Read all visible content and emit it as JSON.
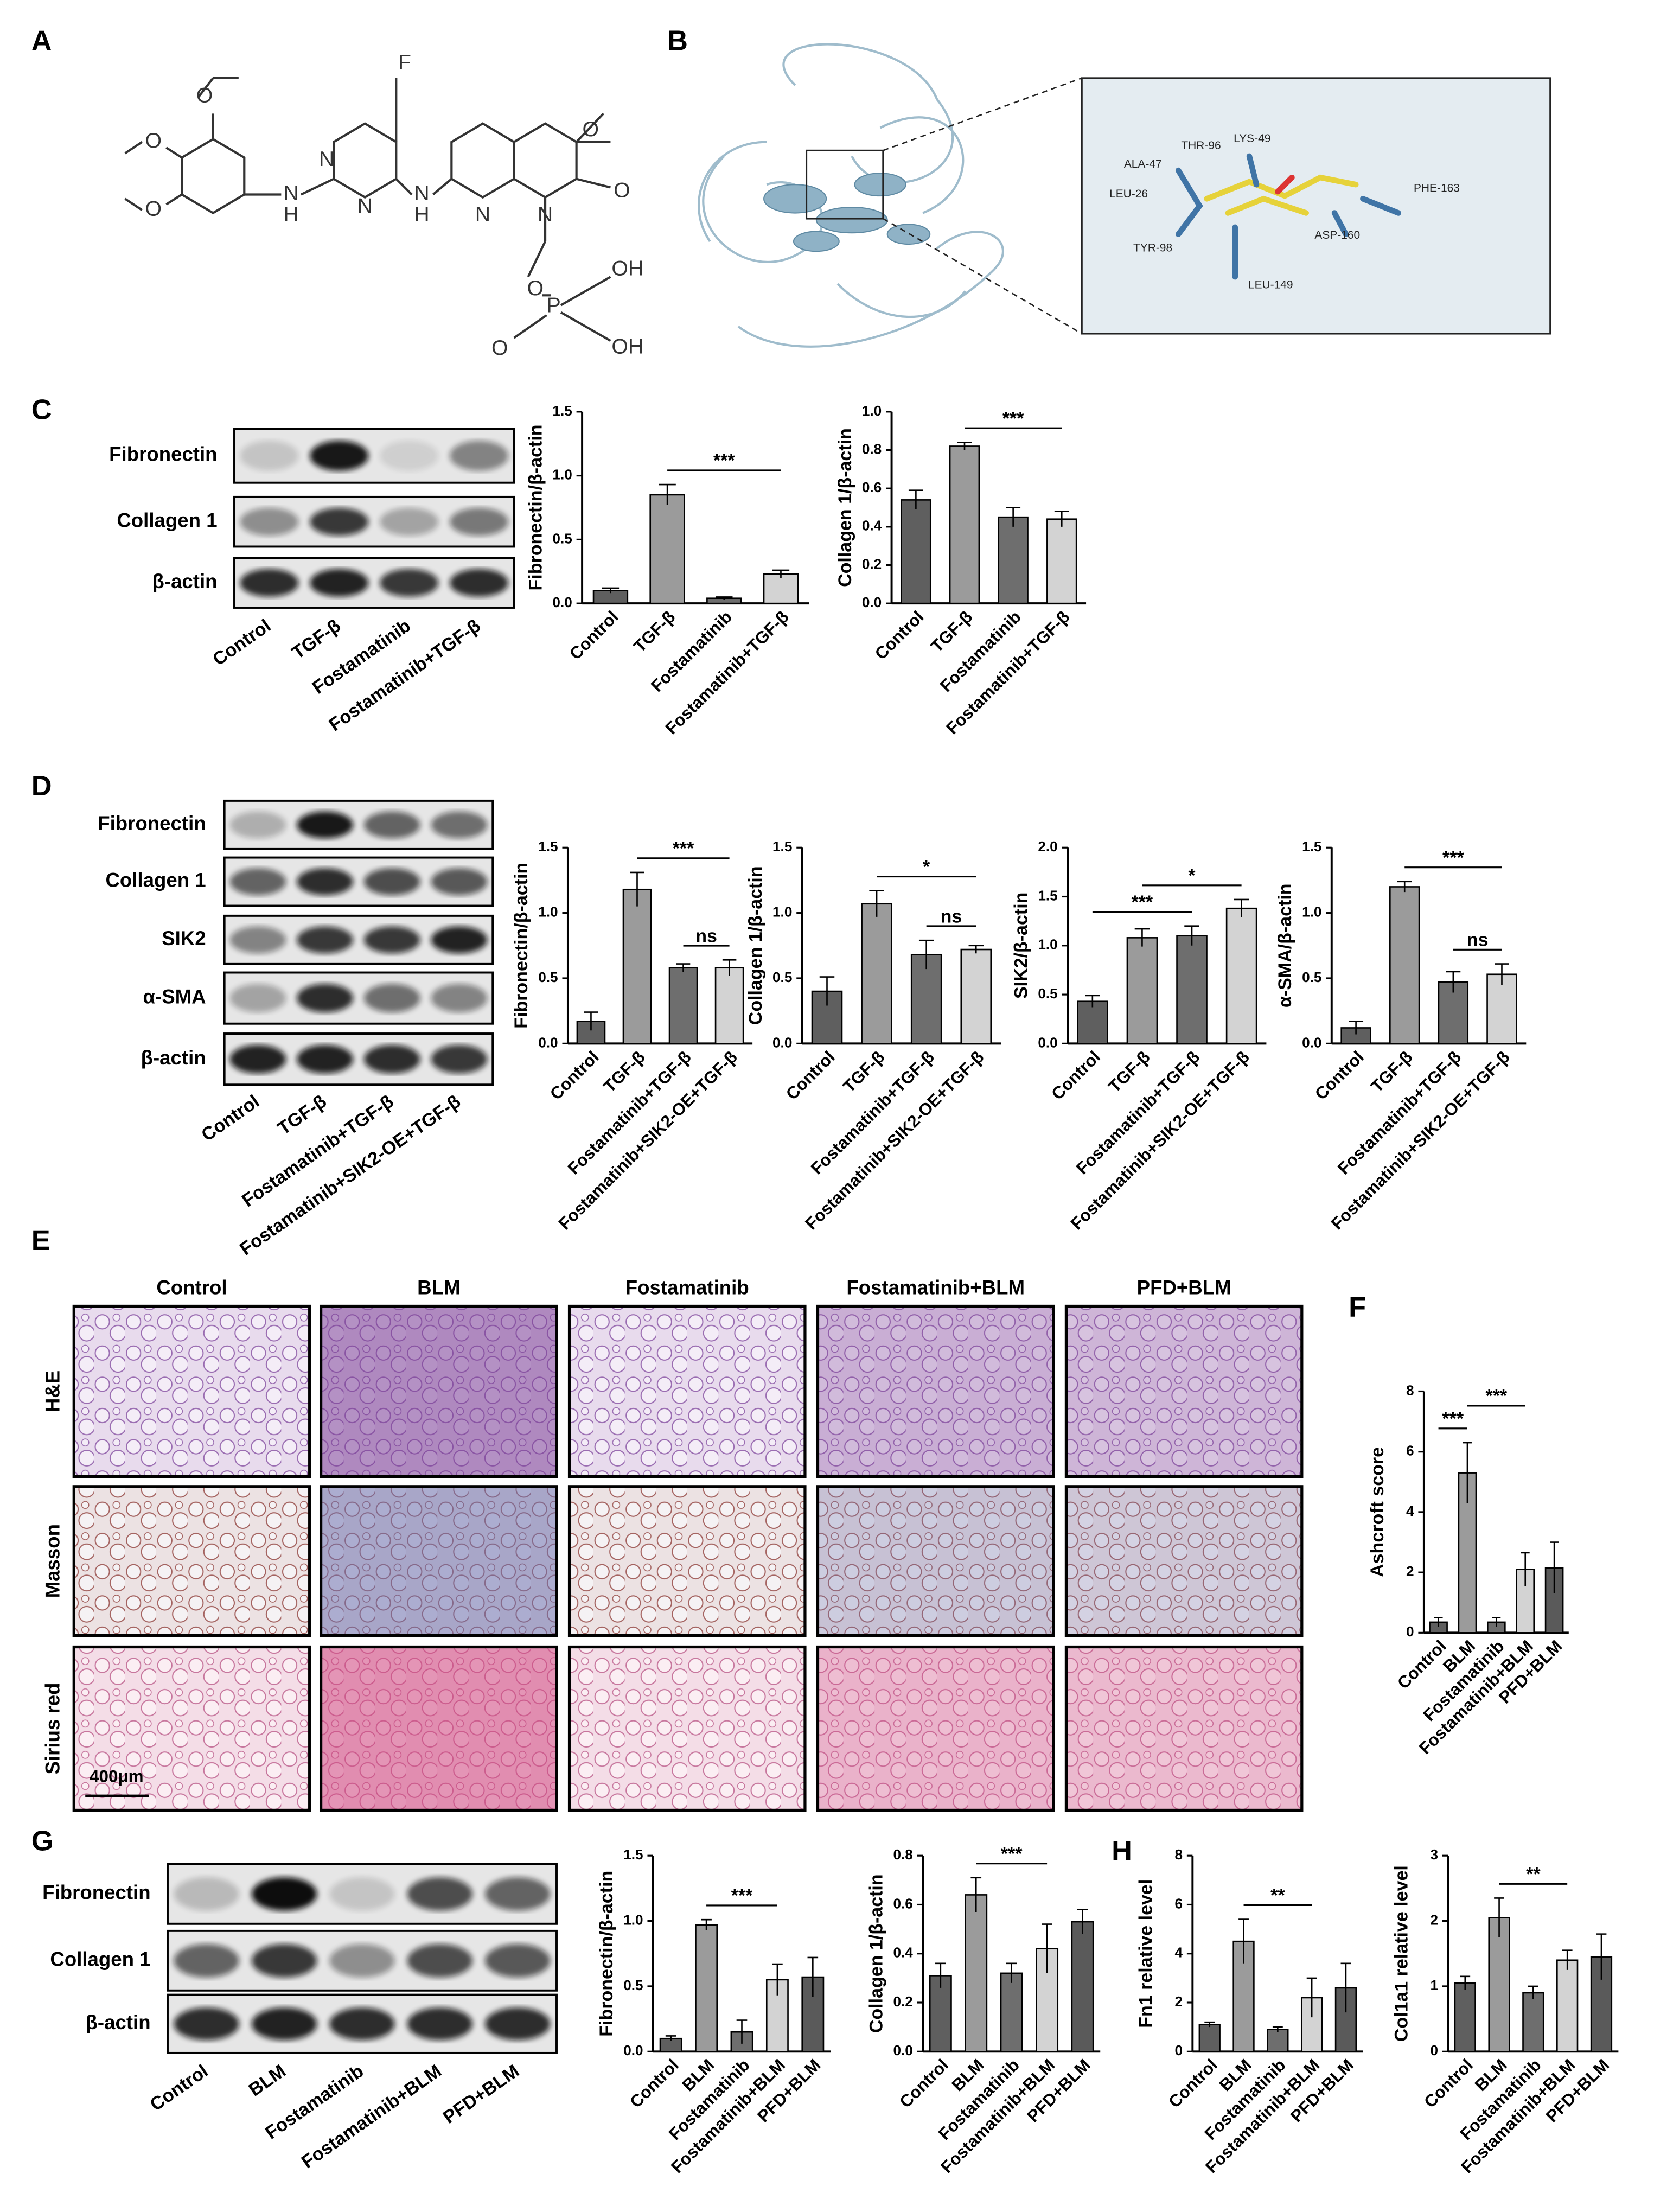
{
  "panel_labels": [
    "A",
    "B",
    "C",
    "D",
    "E",
    "F",
    "G",
    "H"
  ],
  "structure": {
    "atoms": [
      "O",
      "O",
      "O",
      "N",
      "H",
      "N",
      "N",
      "F",
      "N",
      "H",
      "N",
      "O",
      "N",
      "O",
      "O",
      "P",
      "OH",
      "O",
      "OH"
    ]
  },
  "docking": {
    "residues": [
      "THR-96",
      "LYS-49",
      "ALA-47",
      "LEU-26",
      "PHE-163",
      "ASP-160",
      "TYR-98",
      "LEU-149"
    ]
  },
  "blots": [
    {
      "rows": [
        "Fibronectin",
        "Collagen 1",
        "β-actin"
      ],
      "lanes": [
        "Control",
        "TGF-β",
        "Fostamatinib",
        "Fostamatinib+TGF-β"
      ]
    },
    {
      "rows": [
        "Fibronectin",
        "Collagen 1",
        "SIK2",
        "α-SMA",
        "β-actin"
      ],
      "lanes": [
        "Control",
        "TGF-β",
        "Fostamatinib+TGF-β",
        "Fostamatinib+SIK2-OE+TGF-β"
      ]
    },
    {
      "rows": [
        "Fibronectin",
        "Collagen 1",
        "β-actin"
      ],
      "lanes": [
        "Control",
        "BLM",
        "Fostamatinib",
        "Fostamatinib+BLM",
        "PFD+BLM"
      ]
    }
  ],
  "histology": {
    "columns": [
      "Control",
      "BLM",
      "Fostamatinib",
      "Fostamatinib+BLM",
      "PFD+BLM"
    ],
    "rows": [
      "H&E",
      "Masson",
      "Sirius red"
    ],
    "scale_bar": "400μm"
  },
  "chart_data": [
    {
      "type": "bar",
      "ylabel": "Fibronectin/β-actin",
      "categories": [
        "Control",
        "TGF-β",
        "Fostamatinib",
        "Fostamatinib+TGF-β"
      ],
      "values": [
        0.1,
        0.85,
        0.04,
        0.23
      ],
      "errors": [
        0.02,
        0.08,
        0.01,
        0.03
      ],
      "colors": [
        "#5f5f5f",
        "#9b9b9b",
        "#6e6e6e",
        "#d3d3d3"
      ],
      "ylim": [
        0,
        1.5
      ],
      "yticks": [
        {
          "value": 0,
          "label": "0.0"
        },
        0.5,
        {
          "value": 1,
          "label": "1.0"
        },
        1.5
      ],
      "annotations": [
        {
          "label": "***",
          "from": "TGF-β",
          "to": "Fostamatinib+TGF-β"
        }
      ]
    },
    {
      "type": "bar",
      "ylabel": "Collagen 1/β-actin",
      "categories": [
        "Control",
        "TGF-β",
        "Fostamatinib",
        "Fostamatinib+TGF-β"
      ],
      "values": [
        0.54,
        0.82,
        0.45,
        0.44
      ],
      "errors": [
        0.05,
        0.02,
        0.05,
        0.04
      ],
      "colors": [
        "#5f5f5f",
        "#9b9b9b",
        "#6e6e6e",
        "#d3d3d3"
      ],
      "ylim": [
        0,
        1
      ],
      "yticks": [
        {
          "value": 0,
          "label": "0.0"
        },
        0.2,
        0.4,
        0.6,
        0.8,
        {
          "value": 1,
          "label": "1.0"
        }
      ],
      "annotations": [
        {
          "label": "***",
          "from": "TGF-β",
          "to": "Fostamatinib+TGF-β"
        }
      ]
    },
    {
      "type": "bar",
      "ylabel": "Fibronectin/β-actin",
      "categories": [
        "Control",
        "TGF-β",
        "Fostamatinib+TGF-β",
        "Fostamatinib+SIK2-OE+TGF-β"
      ],
      "values": [
        0.17,
        1.18,
        0.58,
        0.58
      ],
      "errors": [
        0.07,
        0.13,
        0.03,
        0.06
      ],
      "colors": [
        "#5f5f5f",
        "#9b9b9b",
        "#6e6e6e",
        "#d3d3d3"
      ],
      "ylim": [
        0,
        1.5
      ],
      "yticks": [
        {
          "value": 0,
          "label": "0.0"
        },
        0.5,
        {
          "value": 1,
          "label": "1.0"
        },
        1.5
      ],
      "annotations": [
        {
          "label": "***",
          "from": "TGF-β",
          "to": "Fostamatinib+SIK2-OE+TGF-β"
        },
        {
          "label": "ns",
          "from": "Fostamatinib+TGF-β",
          "to": "Fostamatinib+SIK2-OE+TGF-β"
        }
      ]
    },
    {
      "type": "bar",
      "ylabel": "Collagen 1/β-actin",
      "categories": [
        "Control",
        "TGF-β",
        "Fostamatinib+TGF-β",
        "Fostamatinib+SIK2-OE+TGF-β"
      ],
      "values": [
        0.4,
        1.07,
        0.68,
        0.72
      ],
      "errors": [
        0.11,
        0.1,
        0.11,
        0.03
      ],
      "colors": [
        "#5f5f5f",
        "#9b9b9b",
        "#6e6e6e",
        "#d3d3d3"
      ],
      "ylim": [
        0,
        1.5
      ],
      "yticks": [
        {
          "value": 0,
          "label": "0.0"
        },
        0.5,
        {
          "value": 1,
          "label": "1.0"
        },
        1.5
      ],
      "annotations": [
        {
          "label": "*",
          "from": "TGF-β",
          "to": "Fostamatinib+SIK2-OE+TGF-β"
        },
        {
          "label": "ns",
          "from": "Fostamatinib+TGF-β",
          "to": "Fostamatinib+SIK2-OE+TGF-β"
        }
      ]
    },
    {
      "type": "bar",
      "ylabel": "SIK2/β-actin",
      "categories": [
        "Control",
        "TGF-β",
        "Fostamatinib+TGF-β",
        "Fostamatinib+SIK2-OE+TGF-β"
      ],
      "values": [
        0.43,
        1.08,
        1.1,
        1.38
      ],
      "errors": [
        0.06,
        0.09,
        0.1,
        0.09
      ],
      "colors": [
        "#5f5f5f",
        "#9b9b9b",
        "#6e6e6e",
        "#d3d3d3"
      ],
      "ylim": [
        0,
        2
      ],
      "yticks": [
        {
          "value": 0,
          "label": "0.0"
        },
        0.5,
        {
          "value": 1,
          "label": "1.0"
        },
        1.5,
        {
          "value": 2,
          "label": "2.0"
        }
      ],
      "annotations": [
        {
          "label": "***",
          "from": "Control",
          "to": "Fostamatinib+TGF-β"
        },
        {
          "label": "*",
          "from": "TGF-β",
          "to": "Fostamatinib+SIK2-OE+TGF-β"
        }
      ]
    },
    {
      "type": "bar",
      "ylabel": "α-SMA/β-actin",
      "categories": [
        "Control",
        "TGF-β",
        "Fostamatinib+TGF-β",
        "Fostamatinib+SIK2-OE+TGF-β"
      ],
      "values": [
        0.12,
        1.2,
        0.47,
        0.53
      ],
      "errors": [
        0.05,
        0.04,
        0.08,
        0.08
      ],
      "colors": [
        "#5f5f5f",
        "#9b9b9b",
        "#6e6e6e",
        "#d3d3d3"
      ],
      "ylim": [
        0,
        1.5
      ],
      "yticks": [
        {
          "value": 0,
          "label": "0.0"
        },
        0.5,
        {
          "value": 1,
          "label": "1.0"
        },
        1.5
      ],
      "annotations": [
        {
          "label": "***",
          "from": "TGF-β",
          "to": "Fostamatinib+SIK2-OE+TGF-β"
        },
        {
          "label": "ns",
          "from": "Fostamatinib+TGF-β",
          "to": "Fostamatinib+SIK2-OE+TGF-β"
        }
      ]
    },
    {
      "type": "bar",
      "ylabel": "Ashcroft score",
      "categories": [
        "Control",
        "BLM",
        "Fostamatinib",
        "Fostamatinib+BLM",
        "PFD+BLM"
      ],
      "values": [
        0.35,
        5.3,
        0.35,
        2.1,
        2.15
      ],
      "errors": [
        0.15,
        1,
        0.15,
        0.55,
        0.85
      ],
      "colors": [
        "#5f5f5f",
        "#9b9b9b",
        "#6e6e6e",
        "#d3d3d3",
        "#5a5a5a"
      ],
      "ylim": [
        0,
        8
      ],
      "yticks": [
        0,
        2,
        4,
        6,
        8
      ],
      "annotations": [
        {
          "label": "***",
          "from": "Control",
          "to": "BLM"
        },
        {
          "label": "***",
          "from": "BLM",
          "to": "Fostamatinib+BLM"
        }
      ]
    },
    {
      "type": "bar",
      "ylabel": "Fibronectin/β-actin",
      "categories": [
        "Control",
        "BLM",
        "Fostamatinib",
        "Fostamatinib+BLM",
        "PFD+BLM"
      ],
      "values": [
        0.1,
        0.97,
        0.15,
        0.55,
        0.57
      ],
      "errors": [
        0.02,
        0.04,
        0.09,
        0.12,
        0.15
      ],
      "colors": [
        "#5f5f5f",
        "#9b9b9b",
        "#6e6e6e",
        "#d3d3d3",
        "#5a5a5a"
      ],
      "ylim": [
        0,
        1.5
      ],
      "yticks": [
        {
          "value": 0,
          "label": "0.0"
        },
        0.5,
        {
          "value": 1,
          "label": "1.0"
        },
        1.5
      ],
      "annotations": [
        {
          "label": "***",
          "from": "BLM",
          "to": "Fostamatinib+BLM"
        }
      ]
    },
    {
      "type": "bar",
      "ylabel": "Collagen 1/β-actin",
      "categories": [
        "Control",
        "BLM",
        "Fostamatinib",
        "Fostamatinib+BLM",
        "PFD+BLM"
      ],
      "values": [
        0.31,
        0.64,
        0.32,
        0.42,
        0.53
      ],
      "errors": [
        0.05,
        0.07,
        0.04,
        0.1,
        0.05
      ],
      "colors": [
        "#5f5f5f",
        "#9b9b9b",
        "#6e6e6e",
        "#d3d3d3",
        "#5a5a5a"
      ],
      "ylim": [
        0,
        0.8
      ],
      "yticks": [
        {
          "value": 0,
          "label": "0.0"
        },
        0.2,
        0.4,
        0.6,
        0.8
      ],
      "annotations": [
        {
          "label": "***",
          "from": "BLM",
          "to": "Fostamatinib+BLM"
        }
      ]
    },
    {
      "type": "bar",
      "ylabel": "Fn1 relative level",
      "categories": [
        "Control",
        "BLM",
        "Fostamatinib",
        "Fostamatinib+BLM",
        "PFD+BLM"
      ],
      "values": [
        1.1,
        4.5,
        0.9,
        2.2,
        2.6
      ],
      "errors": [
        0.1,
        0.9,
        0.1,
        0.8,
        1
      ],
      "colors": [
        "#5f5f5f",
        "#9b9b9b",
        "#6e6e6e",
        "#d3d3d3",
        "#5a5a5a"
      ],
      "ylim": [
        0,
        8
      ],
      "yticks": [
        0,
        2,
        4,
        6,
        8
      ],
      "annotations": [
        {
          "label": "**",
          "from": "BLM",
          "to": "Fostamatinib+BLM"
        }
      ]
    },
    {
      "type": "bar",
      "ylabel": "Col1a1 relative level",
      "categories": [
        "Control",
        "BLM",
        "Fostamatinib",
        "Fostamatinib+BLM",
        "PFD+BLM"
      ],
      "values": [
        1.05,
        2.05,
        0.9,
        1.4,
        1.45
      ],
      "errors": [
        0.1,
        0.3,
        0.1,
        0.15,
        0.35
      ],
      "colors": [
        "#5f5f5f",
        "#9b9b9b",
        "#6e6e6e",
        "#d3d3d3",
        "#5a5a5a"
      ],
      "ylim": [
        0,
        3
      ],
      "yticks": [
        0,
        1,
        2,
        3
      ],
      "annotations": [
        {
          "label": "**",
          "from": "BLM",
          "to": "Fostamatinib+BLM"
        }
      ]
    }
  ]
}
